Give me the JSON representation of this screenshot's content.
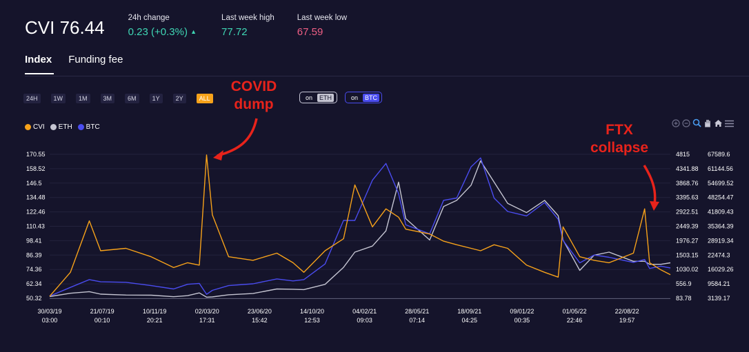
{
  "header": {
    "title": "CVI 76.44",
    "change_label": "24h change",
    "change_value": "0.23 (+0.3%)",
    "high_label": "Last week high",
    "high_value": "77.72",
    "low_label": "Last week low",
    "low_value": "67.59"
  },
  "colors": {
    "cvi": "#f7a21a",
    "eth": "#c5c5d2",
    "btc": "#4a4cf0",
    "positive": "#3fd6b4",
    "negative": "#ef5f85",
    "annotation": "#e8231b",
    "background": "#15142b"
  },
  "tabs": [
    {
      "label": "Index",
      "active": true
    },
    {
      "label": "Funding fee",
      "active": false
    }
  ],
  "ranges": [
    {
      "label": "24H",
      "active": false
    },
    {
      "label": "1W",
      "active": false
    },
    {
      "label": "1M",
      "active": false
    },
    {
      "label": "3M",
      "active": false
    },
    {
      "label": "6M",
      "active": false
    },
    {
      "label": "1Y",
      "active": false
    },
    {
      "label": "2Y",
      "active": false
    },
    {
      "label": "ALL",
      "active": true
    }
  ],
  "toggles": [
    {
      "on_label": "on",
      "chip": "ETH"
    },
    {
      "on_label": "on",
      "chip": "BTC"
    }
  ],
  "legend": [
    "CVI",
    "ETH",
    "BTC"
  ],
  "toolbar_icons": [
    "zoom-in-icon",
    "zoom-out-icon",
    "zoom-select-icon",
    "pan-hand-icon",
    "home-icon",
    "menu-icon"
  ],
  "annotations": {
    "covid": "COVID\ndump",
    "ftx": "FTX\ncollapse"
  },
  "chart_data": {
    "type": "line",
    "x_ticks": [
      [
        "30/03/19",
        "03:00"
      ],
      [
        "21/07/19",
        "00:10"
      ],
      [
        "10/11/19",
        "20:21"
      ],
      [
        "02/03/20",
        "17:31"
      ],
      [
        "23/06/20",
        "15:42"
      ],
      [
        "14/10/20",
        "12:53"
      ],
      [
        "04/02/21",
        "09:03"
      ],
      [
        "28/05/21",
        "07:14"
      ],
      [
        "18/09/21",
        "04:25"
      ],
      [
        "09/01/22",
        "00:35"
      ],
      [
        "01/05/22",
        "22:46"
      ],
      [
        "22/08/22",
        "19:57"
      ]
    ],
    "x": [
      "2019-03-30",
      "2019-05-15",
      "2019-06-26",
      "2019-07-21",
      "2019-09-15",
      "2019-11-10",
      "2019-12-30",
      "2020-01-30",
      "2020-02-25",
      "2020-03-12",
      "2020-03-25",
      "2020-04-30",
      "2020-06-23",
      "2020-08-15",
      "2020-09-20",
      "2020-10-14",
      "2020-11-30",
      "2021-01-10",
      "2021-02-04",
      "2021-03-15",
      "2021-04-14",
      "2021-05-12",
      "2021-05-28",
      "2021-07-20",
      "2021-08-20",
      "2021-09-18",
      "2021-10-20",
      "2021-11-10",
      "2021-12-10",
      "2022-01-09",
      "2022-02-20",
      "2022-04-01",
      "2022-05-01",
      "2022-05-12",
      "2022-06-18",
      "2022-07-20",
      "2022-08-22",
      "2022-10-15",
      "2022-11-09",
      "2022-11-20",
      "2022-12-15",
      "2023-01-05"
    ],
    "series": [
      {
        "name": "CVI",
        "axis": "cvi",
        "values": [
          52,
          72,
          115,
          90,
          92,
          85,
          76,
          80,
          78,
          170,
          120,
          85,
          82,
          88,
          80,
          72,
          90,
          100,
          145,
          110,
          125,
          118,
          108,
          104,
          98,
          95,
          92,
          90,
          95,
          92,
          78,
          72,
          68,
          110,
          85,
          82,
          80,
          88,
          125,
          80,
          74,
          70
        ]
      },
      {
        "name": "ETH",
        "axis": "eth",
        "values": [
          140,
          250,
          300,
          220,
          190,
          185,
          135,
          170,
          260,
          120,
          130,
          200,
          240,
          390,
          380,
          370,
          540,
          1100,
          1600,
          1800,
          2300,
          3900,
          2700,
          2000,
          3100,
          3300,
          3800,
          4600,
          3900,
          3200,
          2900,
          3300,
          2800,
          2000,
          1000,
          1500,
          1600,
          1300,
          1300,
          1200,
          1200,
          1250
        ]
      },
      {
        "name": "BTC",
        "axis": "btc",
        "values": [
          4100,
          8000,
          11500,
          10500,
          10300,
          8800,
          7300,
          9400,
          9800,
          4900,
          6700,
          8800,
          9600,
          11800,
          10900,
          11500,
          18500,
          38000,
          38000,
          56000,
          63500,
          50000,
          36000,
          32000,
          47000,
          48000,
          62000,
          66000,
          48000,
          42000,
          40000,
          46000,
          38500,
          29000,
          19000,
          22500,
          21500,
          19200,
          20500,
          16500,
          17500,
          16700
        ]
      }
    ],
    "y_left_ticks": [
      "170.55",
      "158.52",
      "146.5",
      "134.48",
      "122.46",
      "110.43",
      "98.41",
      "86.39",
      "74.36",
      "62.34",
      "50.32"
    ],
    "y_right1_ticks": [
      "4815",
      "4341.88",
      "3868.76",
      "3395.63",
      "2922.51",
      "2449.39",
      "1976.27",
      "1503.15",
      "1030.02",
      "556.9",
      "83.78"
    ],
    "y_right2_ticks": [
      "67589.6",
      "61144.56",
      "54699.52",
      "48254.47",
      "41809.43",
      "35364.39",
      "28919.34",
      "22474.3",
      "16029.26",
      "9584.21",
      "3139.17"
    ],
    "cvi_range": [
      50.32,
      170.55
    ],
    "eth_range": [
      83.78,
      4815
    ],
    "btc_range": [
      3139.17,
      67589.6
    ],
    "grid": true,
    "legend_position": "top-left"
  }
}
